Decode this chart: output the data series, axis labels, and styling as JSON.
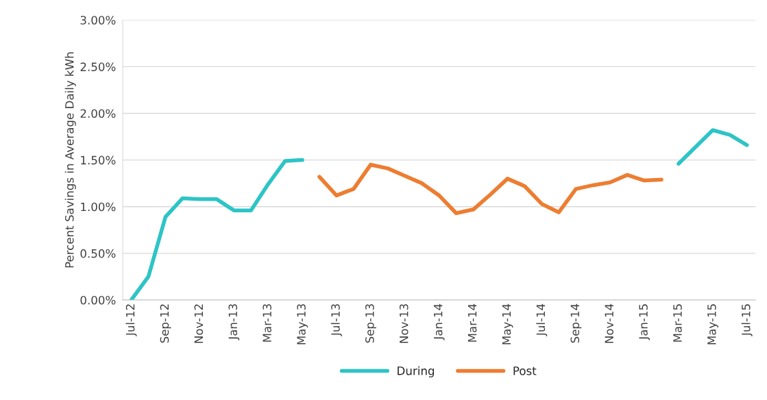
{
  "chart_data": {
    "type": "line",
    "ylabel": "Percent Savings in Average Daily kWh",
    "categories": [
      "Jul-12",
      null,
      "Sep-12",
      null,
      "Nov-12",
      null,
      "Jan-13",
      null,
      "Mar-13",
      null,
      "May-13",
      null,
      "Jul-13",
      null,
      "Sep-13",
      null,
      "Nov-13",
      null,
      "Jan-14",
      null,
      "Mar-14",
      null,
      "May-14",
      null,
      "Jul-14",
      null,
      "Sep-14",
      null,
      "Nov-14",
      null,
      "Jan-15",
      null,
      "Mar-15",
      null,
      "May-15",
      null,
      "Jul-15"
    ],
    "series": [
      {
        "name": "During",
        "color": "#2ec4c6",
        "values": [
          0.0,
          0.25,
          0.89,
          1.09,
          1.08,
          1.08,
          0.96,
          0.96,
          1.24,
          1.49,
          1.5,
          null,
          null,
          null,
          null,
          null,
          null,
          null,
          null,
          null,
          null,
          null,
          null,
          null,
          null,
          null,
          null,
          null,
          null,
          null,
          null,
          null,
          1.46,
          1.64,
          1.82,
          1.77,
          1.66
        ]
      },
      {
        "name": "Post",
        "color": "#ed7d31",
        "values": [
          null,
          null,
          null,
          null,
          null,
          null,
          null,
          null,
          null,
          null,
          null,
          1.32,
          1.12,
          1.19,
          1.45,
          1.41,
          1.33,
          1.25,
          1.12,
          0.93,
          0.97,
          1.13,
          1.3,
          1.22,
          1.03,
          0.94,
          1.19,
          1.23,
          1.26,
          1.34,
          1.28,
          1.29,
          null,
          null,
          null,
          null,
          null
        ]
      }
    ],
    "ylim": [
      0,
      3
    ],
    "yticks": [
      {
        "value": 0,
        "label": "0.00%"
      },
      {
        "value": 0.5,
        "label": "0.50%"
      },
      {
        "value": 1,
        "label": "1.00%"
      },
      {
        "value": 1.5,
        "label": "1.50%"
      },
      {
        "value": 2,
        "label": "2.00%"
      },
      {
        "value": 2.5,
        "label": "2.50%"
      },
      {
        "value": 3,
        "label": "3.00%"
      }
    ],
    "grid": "y",
    "legend": "bottom",
    "line_style": "solid",
    "marker": "none"
  }
}
